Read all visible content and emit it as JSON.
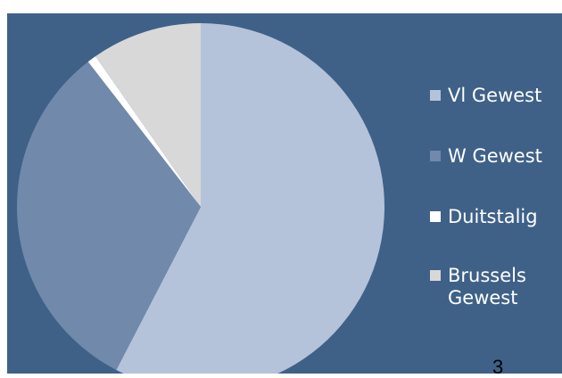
{
  "chart_data": {
    "type": "pie",
    "title": "",
    "slices": [
      {
        "label": "Vl Gewest",
        "value": 57.6,
        "color": "#b4c3da"
      },
      {
        "label": "W Gewest",
        "value": 31.9,
        "color": "#7189aa"
      },
      {
        "label": "Duitstalig",
        "value": 0.8,
        "color": "#ffffff"
      },
      {
        "label": "Brussels Gewest",
        "value": 9.7,
        "color": "#d8d8d8"
      }
    ],
    "legend_position": "right"
  },
  "colors": {
    "background": "#3f6188",
    "legend_text": "#ffffff"
  },
  "page_number": "3"
}
